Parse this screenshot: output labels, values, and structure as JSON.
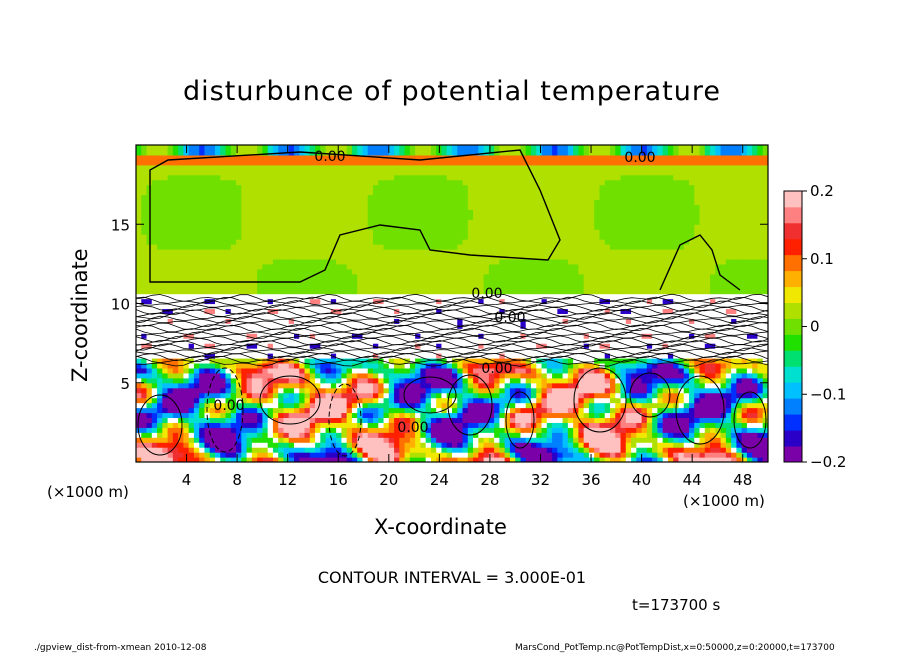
{
  "chart_data": {
    "type": "heatmap",
    "title": "disturbunce of potential temperature",
    "xlabel": "X-coordinate",
    "ylabel": "Z-coordinate",
    "x_unit": "(×1000 m)",
    "y_unit": "(×1000 m)",
    "xlim": [
      0,
      50
    ],
    "ylim": [
      0,
      20
    ],
    "x_ticks": [
      4,
      8,
      12,
      16,
      20,
      24,
      28,
      32,
      36,
      40,
      44,
      48
    ],
    "y_ticks": [
      5,
      10,
      15
    ],
    "colorbar": {
      "range": [
        -0.2,
        0.2
      ],
      "tick_values": [
        -0.2,
        -0.1,
        0,
        0.1,
        0.2
      ],
      "tick_labels": [
        "−0.2",
        "−0.1",
        "0",
        "0.1",
        "0.2"
      ],
      "colors": [
        "#7a00a8",
        "#2a00c8",
        "#0030ff",
        "#0080ff",
        "#00c0ff",
        "#00e0d0",
        "#00e070",
        "#20e000",
        "#70e000",
        "#b0e000",
        "#f0e800",
        "#ffb000",
        "#ff7000",
        "#ff2000",
        "#f03030",
        "#ff8080",
        "#ffc0c0"
      ]
    },
    "contour_labels": [
      "0.00",
      "0.00",
      "0.00",
      "0.00",
      "0.00",
      "0.00",
      "0.00"
    ],
    "contour_interval": "CONTOUR INTERVAL = 3.000E-01",
    "time": "t=173700 s",
    "grid": false,
    "legend": "right"
  },
  "footer": {
    "left": "./gpview_dist-from-xmean  2010-12-08",
    "right": "MarsCond_PotTemp.nc@PotTempDist,x=0:50000,z=0:20000,t=173700"
  }
}
